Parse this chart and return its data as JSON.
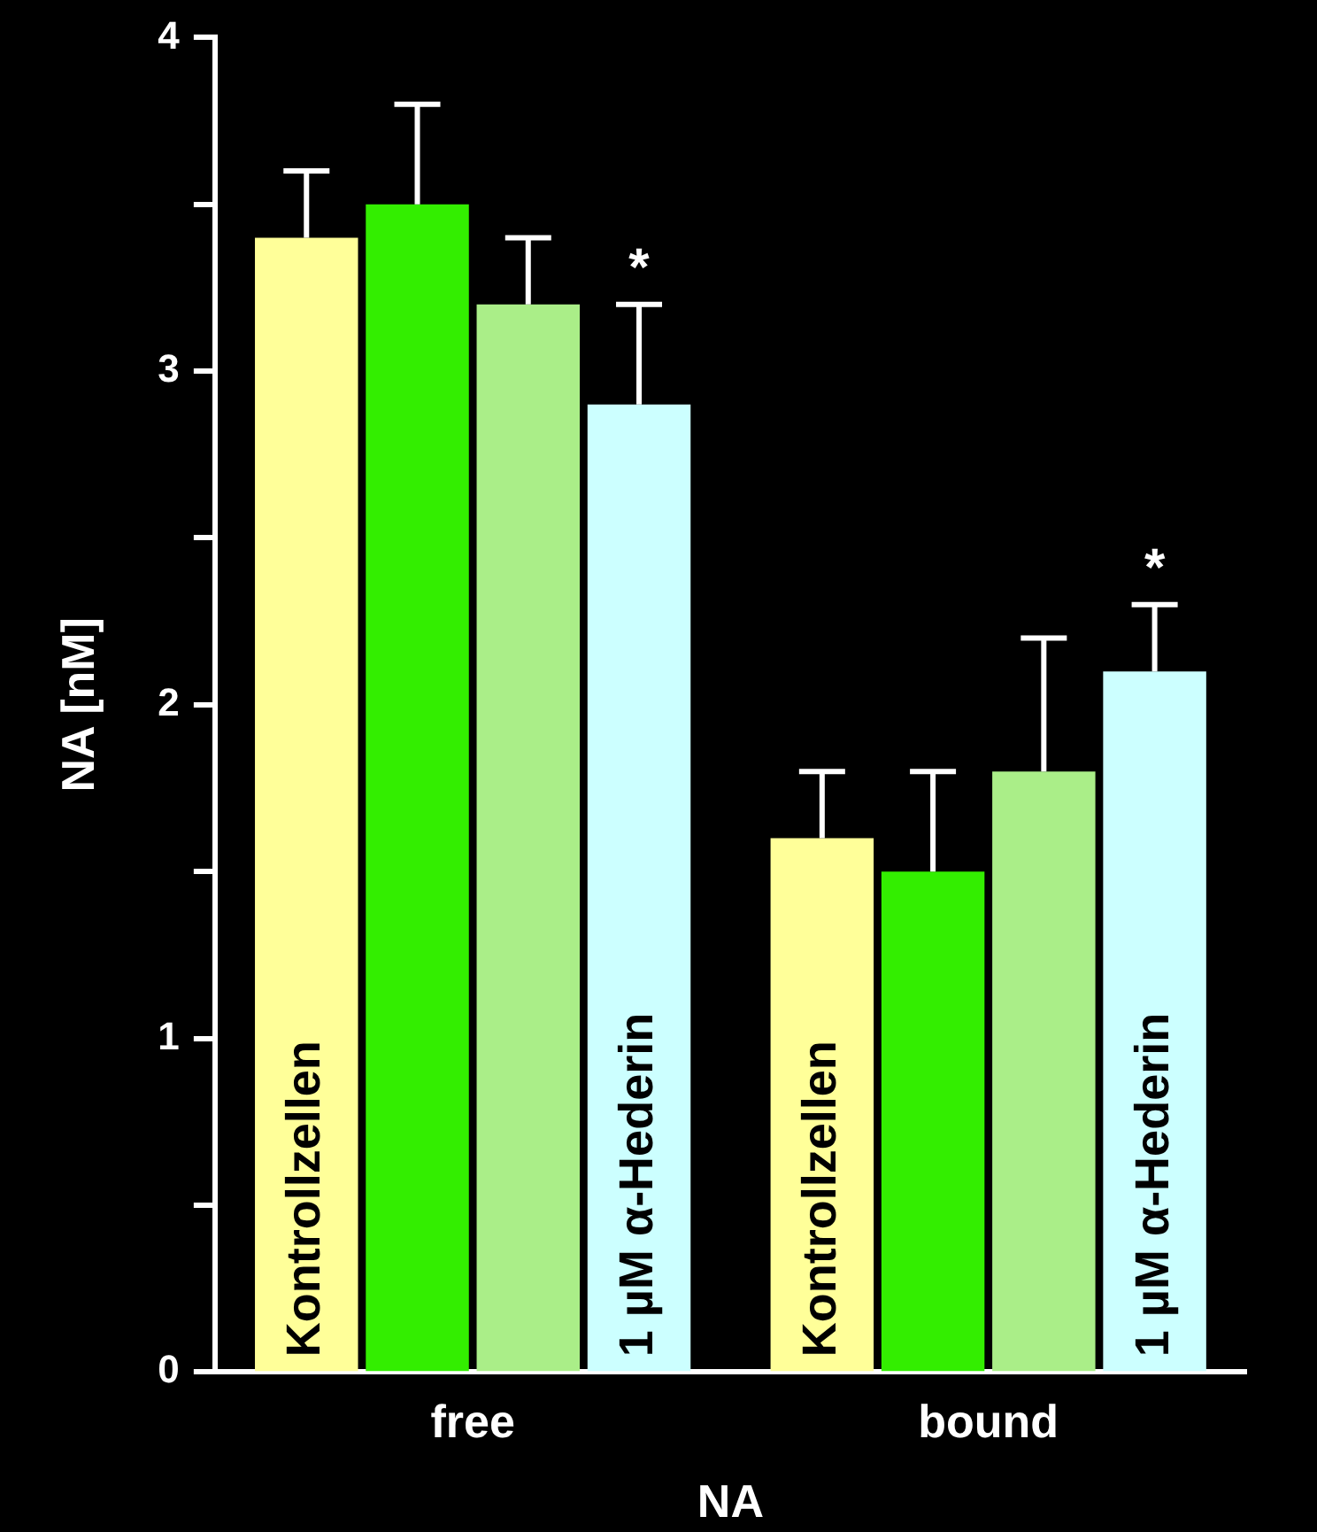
{
  "chart_data": {
    "type": "bar",
    "xlabel": "NA",
    "ylabel": "NA [nM]",
    "categories": [
      "free",
      "bound"
    ],
    "series": [
      {
        "name": "Kontrollzellen",
        "color": "#ffff99",
        "values": [
          3.4,
          1.6
        ],
        "errors": [
          [
            3.4,
            3.6
          ],
          [
            1.6,
            1.8
          ]
        ]
      },
      {
        "color": "#33ee00",
        "values": [
          3.5,
          1.5
        ],
        "errors": [
          [
            3.5,
            3.8
          ],
          [
            1.5,
            1.8
          ]
        ]
      },
      {
        "color": "#aaee88",
        "values": [
          3.2,
          1.8
        ],
        "errors": [
          [
            3.2,
            3.4
          ],
          [
            1.8,
            2.2
          ]
        ]
      },
      {
        "name": "1 µM α-Hederin",
        "color": "#ccffff",
        "values": [
          2.9,
          2.1
        ],
        "errors": [
          [
            2.9,
            3.2
          ],
          [
            2.1,
            2.3
          ]
        ]
      }
    ],
    "ylim": [
      0,
      4
    ],
    "yticks": [
      0,
      {
        "value": 0.5,
        "label": null
      },
      1,
      {
        "value": 1.5,
        "label": null
      },
      2,
      {
        "value": 2.5,
        "label": null
      },
      3,
      {
        "value": 3.5,
        "label": null
      },
      4
    ],
    "annotations": [
      "*",
      "*"
    ],
    "grid": false,
    "legend": false
  }
}
